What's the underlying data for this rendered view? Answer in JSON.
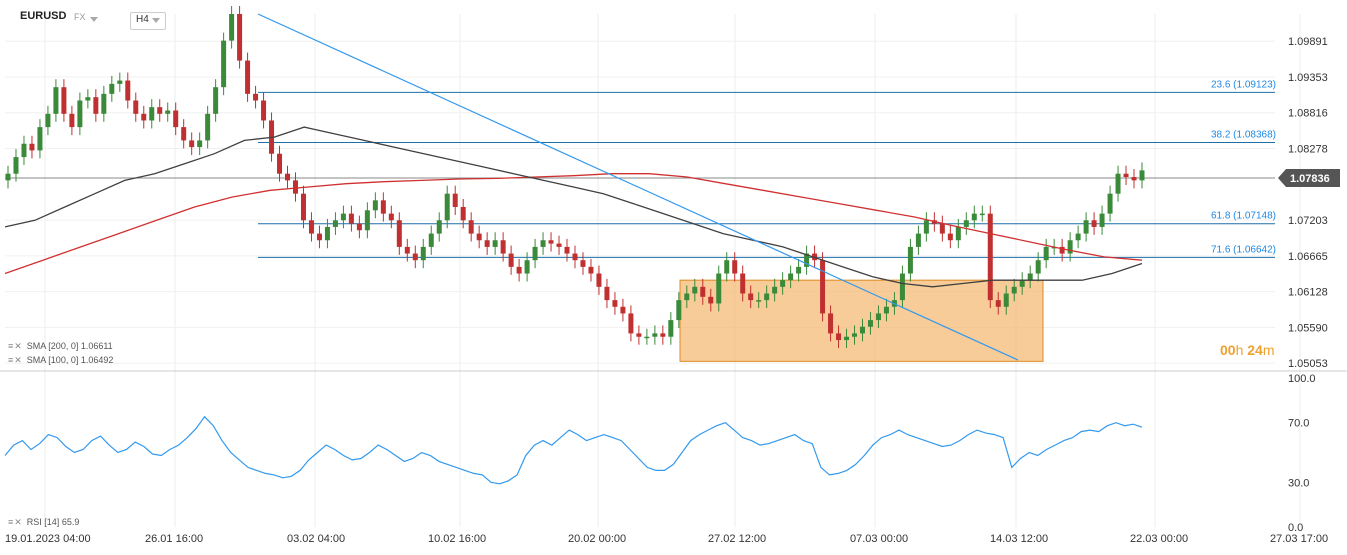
{
  "header": {
    "symbol": "EURUSD",
    "market": "FX",
    "timeframe": "H4"
  },
  "legend": {
    "sma200": "SMA [200, 0] 1.06611",
    "sma100": "SMA [100, 0] 1.06492",
    "rsi": "RSI [14] 65.9"
  },
  "timer": {
    "hours": "00",
    "h": "h",
    "minutes": "24",
    "m": "m"
  },
  "colors": {
    "bull": "#3a8a3a",
    "bear": "#c03030",
    "sma200": "#d03030",
    "sma100": "#404040",
    "trend": "#3399ee",
    "fib": "#1e6fa8",
    "box": "#f5b062",
    "rsi": "#3399ee"
  },
  "chart_data": {
    "type": "line",
    "price_axis": {
      "ticks": [
        "1.09891",
        "1.09353",
        "1.08816",
        "1.08278",
        "1.07203",
        "1.06665",
        "1.06128",
        "1.05590",
        "1.05053"
      ],
      "current_price": "1.07836"
    },
    "x_ticks": [
      "19.01.2023 04:00",
      "26.01 16:00",
      "03.02 04:00",
      "10.02 16:00",
      "20.02 00:00",
      "27.02 12:00",
      "07.03 00:00",
      "14.03 12:00",
      "22.03 00:00",
      "27.03 17:00"
    ],
    "fib_levels": [
      {
        "label": "23.6 (1.09123)",
        "value": 1.09123
      },
      {
        "label": "38.2 (1.08368)",
        "value": 1.08368
      },
      {
        "label": "61.8 (1.07148)",
        "value": 1.07148
      },
      {
        "label": "71.6 (1.06642)",
        "value": 1.06642
      }
    ],
    "price": [
      1.079,
      1.0815,
      1.0835,
      1.0825,
      1.086,
      1.088,
      1.092,
      1.088,
      1.086,
      1.09,
      1.0905,
      1.088,
      1.091,
      1.0925,
      1.093,
      1.09,
      1.088,
      1.087,
      1.089,
      1.088,
      1.0885,
      1.086,
      1.084,
      1.083,
      1.084,
      1.088,
      1.092,
      1.099,
      1.103,
      1.096,
      1.091,
      1.09,
      1.087,
      1.082,
      1.079,
      1.078,
      1.076,
      1.072,
      1.07,
      1.069,
      1.071,
      1.072,
      1.073,
      1.0715,
      1.0705,
      1.0735,
      1.075,
      1.073,
      1.072,
      1.068,
      1.067,
      1.066,
      1.068,
      1.07,
      1.072,
      1.076,
      1.074,
      1.072,
      1.07,
      1.069,
      1.068,
      1.069,
      1.067,
      1.065,
      1.064,
      1.066,
      1.068,
      1.069,
      1.0685,
      1.068,
      1.067,
      1.066,
      1.065,
      1.064,
      1.062,
      1.06,
      1.059,
      1.058,
      1.055,
      1.0545,
      1.0545,
      1.055,
      1.0545,
      1.057,
      1.06,
      1.061,
      1.062,
      1.0605,
      1.0595,
      1.064,
      1.066,
      1.064,
      1.061,
      1.06,
      1.06,
      1.061,
      1.062,
      1.063,
      1.064,
      1.065,
      1.067,
      1.066,
      1.058,
      1.055,
      1.054,
      1.0545,
      1.055,
      1.056,
      1.057,
      1.058,
      1.059,
      1.06,
      1.064,
      1.068,
      1.07,
      1.072,
      1.0715,
      1.07,
      1.069,
      1.071,
      1.072,
      1.073,
      1.073,
      1.06,
      1.059,
      1.061,
      1.062,
      1.063,
      1.064,
      1.066,
      1.068,
      1.068,
      1.067,
      1.069,
      1.07,
      1.072,
      1.071,
      1.073,
      1.076,
      1.079,
      1.0785,
      1.078,
      1.0795
    ],
    "sma100": [
      1.071,
      1.072,
      1.074,
      1.076,
      1.078,
      1.079,
      1.0805,
      1.082,
      1.084,
      1.0845,
      1.086,
      1.085,
      1.084,
      1.083,
      1.082,
      1.081,
      1.08,
      1.079,
      1.078,
      1.077,
      1.076,
      1.0745,
      1.073,
      1.0715,
      1.07,
      1.069,
      1.068,
      1.0665,
      1.065,
      1.0635,
      1.0625,
      1.062,
      1.0625,
      1.063,
      1.063,
      1.063,
      1.063,
      1.064,
      1.0655
    ],
    "sma200": [
      1.064,
      1.066,
      1.068,
      1.07,
      1.072,
      1.074,
      1.0755,
      1.0765,
      1.077,
      1.0775,
      1.0778,
      1.078,
      1.0782,
      1.0783,
      1.0785,
      1.0787,
      1.079,
      1.079,
      1.0785,
      1.0775,
      1.0765,
      1.0755,
      1.0745,
      1.0735,
      1.0725,
      1.0712,
      1.07,
      1.0688,
      1.0676,
      1.0665,
      1.066
    ],
    "rsi_axis": {
      "ticks": [
        "100.0",
        "70.0",
        "30.0",
        "0.0"
      ],
      "values": [
        100,
        70,
        30,
        0
      ]
    },
    "rsi": [
      48,
      55,
      58,
      52,
      56,
      62,
      60,
      54,
      50,
      52,
      58,
      61,
      55,
      50,
      52,
      57,
      54,
      49,
      48,
      52,
      55,
      60,
      66,
      74,
      68,
      58,
      50,
      45,
      40,
      38,
      36,
      35,
      33,
      34,
      38,
      45,
      50,
      55,
      52,
      48,
      45,
      46,
      50,
      55,
      52,
      48,
      44,
      46,
      50,
      48,
      44,
      42,
      40,
      38,
      36,
      35,
      30,
      29,
      31,
      35,
      48,
      55,
      58,
      55,
      60,
      65,
      62,
      58,
      60,
      62,
      60,
      58,
      52,
      46,
      40,
      38,
      38,
      42,
      50,
      58,
      62,
      65,
      68,
      70,
      65,
      60,
      58,
      55,
      56,
      58,
      60,
      62,
      58,
      56,
      40,
      35,
      36,
      38,
      42,
      48,
      55,
      60,
      62,
      65,
      62,
      60,
      58,
      56,
      54,
      55,
      58,
      62,
      65,
      63,
      62,
      60,
      40,
      46,
      50,
      48,
      52,
      55,
      58,
      60,
      64,
      65,
      64,
      68,
      70,
      68,
      69,
      67
    ]
  }
}
